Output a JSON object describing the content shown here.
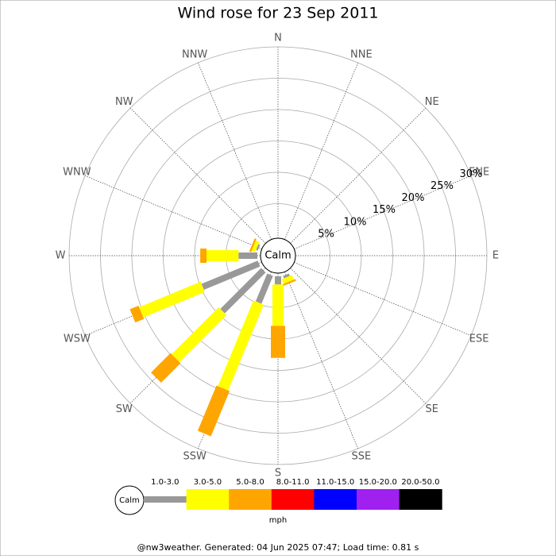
{
  "chart_data": {
    "type": "windrose",
    "title": "Wind rose for 23 Sep 2011",
    "directions": [
      "N",
      "NNE",
      "NE",
      "ENE",
      "E",
      "ESE",
      "SE",
      "SSE",
      "S",
      "SSW",
      "SW",
      "WSW",
      "W",
      "WNW",
      "NW",
      "NNW"
    ],
    "rlim": [
      0,
      30
    ],
    "rticks": [
      {
        "value": 5,
        "label": "5%"
      },
      {
        "value": 10,
        "label": "10%"
      },
      {
        "value": 15,
        "label": "15%"
      },
      {
        "value": 20,
        "label": "20%"
      },
      {
        "value": 25,
        "label": "25%"
      },
      {
        "value": 30,
        "label": "30%"
      }
    ],
    "calm_label": "Calm",
    "units": "mph",
    "series": [
      {
        "name": "1.0-3.0",
        "color": "#999999",
        "values": [
          0,
          0,
          0,
          0,
          0,
          0,
          0,
          0.4,
          1.3,
          4.8,
          9.2,
          9.7,
          3.0,
          0.3,
          0,
          0
        ]
      },
      {
        "name": "3.0-5.0",
        "color": "#ffff00",
        "values": [
          0,
          0,
          0,
          0,
          0,
          0,
          0,
          0.8,
          6.6,
          14.8,
          10.6,
          10.6,
          5.1,
          0.6,
          0,
          0
        ]
      },
      {
        "name": "5.0-8.0",
        "color": "#ffa500",
        "values": [
          0,
          0,
          0,
          0,
          0,
          0,
          0,
          0.3,
          5.1,
          7.8,
          4.4,
          1.5,
          1.0,
          0.3,
          0,
          0
        ]
      },
      {
        "name": "8.0-11.0",
        "color": "#ff0000",
        "values": [
          0,
          0,
          0,
          0,
          0,
          0,
          0,
          0,
          0,
          0,
          0,
          0,
          0,
          0,
          0,
          0
        ]
      },
      {
        "name": "11.0-15.0",
        "color": "#0000ff",
        "values": [
          0,
          0,
          0,
          0,
          0,
          0,
          0,
          0,
          0,
          0,
          0,
          0,
          0,
          0,
          0,
          0
        ]
      },
      {
        "name": "15.0-20.0",
        "color": "#a020f0",
        "values": [
          0,
          0,
          0,
          0,
          0,
          0,
          0,
          0,
          0,
          0,
          0,
          0,
          0,
          0,
          0,
          0
        ]
      },
      {
        "name": "20.0-50.0",
        "color": "#000000",
        "values": [
          0,
          0,
          0,
          0,
          0,
          0,
          0,
          0,
          0,
          0,
          0,
          0,
          0,
          0,
          0,
          0
        ]
      }
    ],
    "footer": "@nw3weather. Generated: 04 Jun 2025 07:47; Load time: 0.81 s"
  }
}
